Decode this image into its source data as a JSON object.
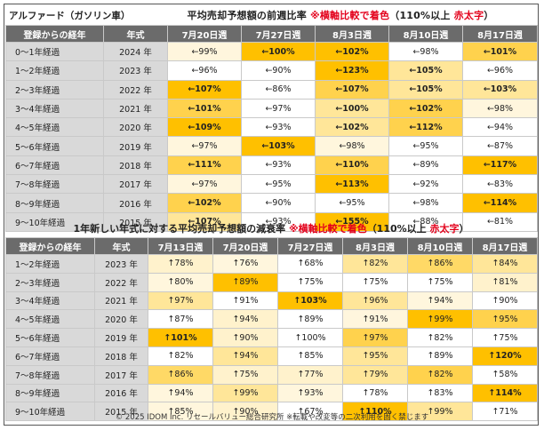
{
  "title_car": "アルファード（ガソリン車）",
  "section1": {
    "title": "平均売却予想額の前週比率",
    "note_red": "※横軸比較で着色",
    "note_rest": "（110%以上",
    "note_red2": "赤太字",
    "note_end": "）"
  },
  "section2": {
    "title": "1年新しい年式に対する平均売却予想額の減衰率",
    "note_red": "※横軸比較で着色",
    "note_rest": "（110%以上",
    "note_red2": "赤太字",
    "note_end": "）"
  },
  "table1": {
    "headers": [
      "登録からの経年",
      "年式",
      "7月20日週",
      "7月27日週",
      "8月3日週",
      "8月10日週",
      "8月17日週"
    ],
    "rows": [
      {
        "label": "0～1年経過",
        "year": "2024 年",
        "cells": [
          [
            "←99%",
            "#fff6dd",
            ""
          ],
          [
            "←100%",
            "#ffc000",
            "b"
          ],
          [
            "←102%",
            "#ffc000",
            "b"
          ],
          [
            "←98%",
            "#ffffff",
            ""
          ],
          [
            "←101%",
            "#ffd24d",
            "b"
          ]
        ]
      },
      {
        "label": "1～2年経過",
        "year": "2023 年",
        "cells": [
          [
            "←96%",
            "#ffffff",
            ""
          ],
          [
            "←90%",
            "#ffffff",
            "g"
          ],
          [
            "←123%",
            "#ffc000",
            "r"
          ],
          [
            "←105%",
            "#ffe699",
            "b"
          ],
          [
            "←96%",
            "#ffffff",
            ""
          ]
        ]
      },
      {
        "label": "2～3年経過",
        "year": "2022 年",
        "cells": [
          [
            "←107%",
            "#ffc000",
            "b"
          ],
          [
            "←86%",
            "#ffffff",
            "g"
          ],
          [
            "←107%",
            "#ffd24d",
            "b"
          ],
          [
            "←105%",
            "#ffe699",
            "b"
          ],
          [
            "←103%",
            "#ffe699",
            "b"
          ]
        ]
      },
      {
        "label": "3～4年経過",
        "year": "2021 年",
        "cells": [
          [
            "←101%",
            "#ffd24d",
            "b"
          ],
          [
            "←97%",
            "#ffffff",
            ""
          ],
          [
            "←100%",
            "#ffe699",
            "b"
          ],
          [
            "←102%",
            "#ffd24d",
            "b"
          ],
          [
            "←98%",
            "#fff6dd",
            ""
          ]
        ]
      },
      {
        "label": "4～5年経過",
        "year": "2020 年",
        "cells": [
          [
            "←109%",
            "#ffc000",
            "b"
          ],
          [
            "←93%",
            "#ffffff",
            ""
          ],
          [
            "←102%",
            "#ffe699",
            "b"
          ],
          [
            "←112%",
            "#ffd24d",
            "r"
          ],
          [
            "←94%",
            "#ffffff",
            ""
          ]
        ]
      },
      {
        "label": "5～6年経過",
        "year": "2019 年",
        "cells": [
          [
            "←97%",
            "#fff6dd",
            ""
          ],
          [
            "←103%",
            "#ffc000",
            "b"
          ],
          [
            "←98%",
            "#fff6dd",
            ""
          ],
          [
            "←95%",
            "#ffffff",
            ""
          ],
          [
            "←87%",
            "#ffffff",
            "g"
          ]
        ]
      },
      {
        "label": "6～7年経過",
        "year": "2018 年",
        "cells": [
          [
            "←111%",
            "#ffd24d",
            "r"
          ],
          [
            "←93%",
            "#ffffff",
            ""
          ],
          [
            "←110%",
            "#ffd24d",
            "b"
          ],
          [
            "←89%",
            "#ffffff",
            "g"
          ],
          [
            "←117%",
            "#ffc000",
            "r"
          ]
        ]
      },
      {
        "label": "7～8年経過",
        "year": "2017 年",
        "cells": [
          [
            "←97%",
            "#fff6dd",
            ""
          ],
          [
            "←95%",
            "#ffffff",
            ""
          ],
          [
            "←113%",
            "#ffc000",
            "r"
          ],
          [
            "←92%",
            "#ffffff",
            ""
          ],
          [
            "←83%",
            "#ffffff",
            "g"
          ]
        ]
      },
      {
        "label": "8～9年経過",
        "year": "2016 年",
        "cells": [
          [
            "←102%",
            "#ffd24d",
            "b"
          ],
          [
            "←90%",
            "#ffffff",
            ""
          ],
          [
            "←95%",
            "#ffffff",
            ""
          ],
          [
            "←98%",
            "#ffffff",
            ""
          ],
          [
            "←114%",
            "#ffc000",
            "r"
          ]
        ]
      },
      {
        "label": "9～10年経過",
        "year": "2015 年",
        "cells": [
          [
            "←107%",
            "#ffe699",
            "b"
          ],
          [
            "←93%",
            "#ffffff",
            ""
          ],
          [
            "←155%",
            "#ffc000",
            "r"
          ],
          [
            "←88%",
            "#ffffff",
            "g"
          ],
          [
            "←81%",
            "#ffffff",
            "g"
          ]
        ]
      }
    ]
  },
  "table2": {
    "headers": [
      "登録からの経年",
      "年式",
      "7月13日週",
      "7月20日週",
      "7月27日週",
      "8月3日週",
      "8月10日週",
      "8月17日週"
    ],
    "rows": [
      {
        "label": "1～2年経過",
        "year": "2023 年",
        "cells": [
          [
            "↑78%",
            "#fff2cc",
            "g"
          ],
          [
            "↑76%",
            "#fff6dd",
            "g"
          ],
          [
            "↑68%",
            "#ffffff",
            "g"
          ],
          [
            "↑82%",
            "#ffe699",
            "g"
          ],
          [
            "↑86%",
            "#ffd966",
            "g"
          ],
          [
            "↑84%",
            "#ffe699",
            "g"
          ]
        ]
      },
      {
        "label": "2～3年経過",
        "year": "2022 年",
        "cells": [
          [
            "↑80%",
            "#fff6dd",
            "g"
          ],
          [
            "↑89%",
            "#ffc000",
            "g"
          ],
          [
            "↑75%",
            "#ffffff",
            "g"
          ],
          [
            "↑75%",
            "#ffffff",
            "g"
          ],
          [
            "↑75%",
            "#ffffff",
            "g"
          ],
          [
            "↑81%",
            "#fff2cc",
            "g"
          ]
        ]
      },
      {
        "label": "3～4年経過",
        "year": "2021 年",
        "cells": [
          [
            "↑97%",
            "#ffe699",
            ""
          ],
          [
            "↑91%",
            "#ffffff",
            ""
          ],
          [
            "↑103%",
            "#ffc000",
            "b"
          ],
          [
            "↑96%",
            "#ffe699",
            ""
          ],
          [
            "↑94%",
            "#fff6dd",
            ""
          ],
          [
            "↑90%",
            "#ffffff",
            "g"
          ]
        ]
      },
      {
        "label": "4～5年経過",
        "year": "2020 年",
        "cells": [
          [
            "↑87%",
            "#ffffff",
            "g"
          ],
          [
            "↑94%",
            "#fff2cc",
            ""
          ],
          [
            "↑89%",
            "#ffffff",
            "g"
          ],
          [
            "↑91%",
            "#fff6dd",
            ""
          ],
          [
            "↑99%",
            "#ffc000",
            ""
          ],
          [
            "↑95%",
            "#ffd24d",
            ""
          ]
        ]
      },
      {
        "label": "5～6年経過",
        "year": "2019 年",
        "cells": [
          [
            "↑101%",
            "#ffc000",
            "b"
          ],
          [
            "↑90%",
            "#fff2cc",
            "g"
          ],
          [
            "↑100%",
            "#ffffff",
            "g"
          ],
          [
            "↑97%",
            "#ffd24d",
            ""
          ],
          [
            "↑82%",
            "#ffffff",
            "g"
          ],
          [
            "↑75%",
            "#ffffff",
            "g"
          ]
        ]
      },
      {
        "label": "6～7年経過",
        "year": "2018 年",
        "cells": [
          [
            "↑82%",
            "#ffffff",
            "g"
          ],
          [
            "↑94%",
            "#ffe699",
            ""
          ],
          [
            "↑85%",
            "#ffffff",
            "g"
          ],
          [
            "↑95%",
            "#ffe699",
            ""
          ],
          [
            "↑89%",
            "#ffffff",
            "g"
          ],
          [
            "↑120%",
            "#ffc000",
            "r"
          ]
        ]
      },
      {
        "label": "7～8年経過",
        "year": "2017 年",
        "cells": [
          [
            "↑86%",
            "#ffd966",
            "g"
          ],
          [
            "↑75%",
            "#fff2cc",
            "g"
          ],
          [
            "↑77%",
            "#fff2cc",
            "g"
          ],
          [
            "↑79%",
            "#ffe699",
            "g"
          ],
          [
            "↑82%",
            "#ffd24d",
            "g"
          ],
          [
            "↑58%",
            "#ffffff",
            "g"
          ]
        ]
      },
      {
        "label": "8～9年経過",
        "year": "2016 年",
        "cells": [
          [
            "↑94%",
            "#fff6dd",
            ""
          ],
          [
            "↑99%",
            "#ffe699",
            ""
          ],
          [
            "↑93%",
            "#fff6dd",
            ""
          ],
          [
            "↑78%",
            "#ffffff",
            "g"
          ],
          [
            "↑83%",
            "#ffffff",
            "g"
          ],
          [
            "↑114%",
            "#ffc000",
            "r"
          ]
        ]
      },
      {
        "label": "9～10年経過",
        "year": "2015 年",
        "cells": [
          [
            "↑85%",
            "#fff6dd",
            "g"
          ],
          [
            "↑90%",
            "#fff2cc",
            "g"
          ],
          [
            "↑67%",
            "#ffffff",
            "g"
          ],
          [
            "↑110%",
            "#ffc000",
            "r"
          ],
          [
            "↑99%",
            "#ffe699",
            ""
          ],
          [
            "↑71%",
            "#ffffff",
            "g"
          ]
        ]
      }
    ]
  },
  "footer": "© 2025 IDOM Inc. リセールバリュー総合研究所 ※転載や改変等の二次利用を固く禁じます"
}
